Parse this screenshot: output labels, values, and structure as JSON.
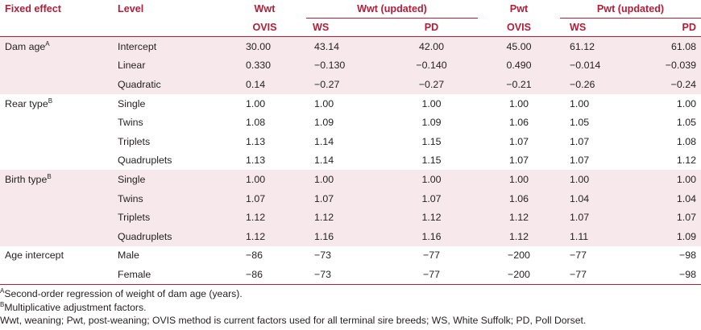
{
  "header": {
    "col_fixed_effect": "Fixed effect",
    "col_level": "Level",
    "col_wwt": "Wwt",
    "col_wwt_updated": "Wwt (updated)",
    "col_pwt": "Pwt",
    "col_pwt_updated": "Pwt (updated)",
    "sub_ovis_1": "OVIS",
    "sub_ws_1": "WS",
    "sub_pd_1": "PD",
    "sub_ovis_2": "OVIS",
    "sub_ws_2": "WS",
    "sub_pd_2": "PD"
  },
  "groups": [
    {
      "effect": "Dam age",
      "sup": "A",
      "shaded": true,
      "rows": [
        {
          "level": "Intercept",
          "v": [
            "30.00",
            "43.14",
            "42.00",
            "45.00",
            "61.12",
            "61.08"
          ]
        },
        {
          "level": "Linear",
          "v": [
            "0.330",
            "−0.130",
            "−0.140",
            "0.490",
            "−0.014",
            "−0.039"
          ]
        },
        {
          "level": "Quadratic",
          "v": [
            "0.14",
            "−0.27",
            "−0.27",
            "−0.21",
            "−0.26",
            "−0.24"
          ]
        }
      ]
    },
    {
      "effect": "Rear type",
      "sup": "B",
      "shaded": false,
      "rows": [
        {
          "level": "Single",
          "v": [
            "1.00",
            "1.00",
            "1.00",
            "1.00",
            "1.00",
            "1.00"
          ]
        },
        {
          "level": "Twins",
          "v": [
            "1.08",
            "1.09",
            "1.09",
            "1.06",
            "1.05",
            "1.05"
          ]
        },
        {
          "level": "Triplets",
          "v": [
            "1.13",
            "1.14",
            "1.15",
            "1.07",
            "1.07",
            "1.08"
          ]
        },
        {
          "level": "Quadruplets",
          "v": [
            "1.13",
            "1.14",
            "1.15",
            "1.07",
            "1.07",
            "1.12"
          ]
        }
      ]
    },
    {
      "effect": "Birth type",
      "sup": "B",
      "shaded": true,
      "rows": [
        {
          "level": "Single",
          "v": [
            "1.00",
            "1.00",
            "1.00",
            "1.00",
            "1.00",
            "1.00"
          ]
        },
        {
          "level": "Twins",
          "v": [
            "1.07",
            "1.07",
            "1.07",
            "1.06",
            "1.04",
            "1.04"
          ]
        },
        {
          "level": "Triplets",
          "v": [
            "1.12",
            "1.12",
            "1.12",
            "1.12",
            "1.07",
            "1.07"
          ]
        },
        {
          "level": "Quadruplets",
          "v": [
            "1.12",
            "1.16",
            "1.16",
            "1.12",
            "1.11",
            "1.09"
          ]
        }
      ]
    },
    {
      "effect": "Age intercept",
      "sup": "",
      "shaded": false,
      "rows": [
        {
          "level": "Male",
          "v": [
            "−86",
            "−73",
            "−77",
            "−200",
            "−77",
            "−98"
          ]
        },
        {
          "level": "Female",
          "v": [
            "−86",
            "−73",
            "−77",
            "−200",
            "−77",
            "−98"
          ]
        }
      ]
    }
  ],
  "footnotes": {
    "a_mark": "A",
    "a_text": "Second-order regression of weight of dam age (years).",
    "b_mark": "B",
    "b_text": "Multiplicative adjustment factors.",
    "abbrev": "Wwt, weaning; Pwt, post-weaning; OVIS method is current factors used for all terminal sire breeds; WS, White Suffolk; PD, Poll Dorset."
  },
  "colors": {
    "accent": "#b01e3a",
    "shade": "#f7e9eb",
    "text": "#231f20"
  }
}
